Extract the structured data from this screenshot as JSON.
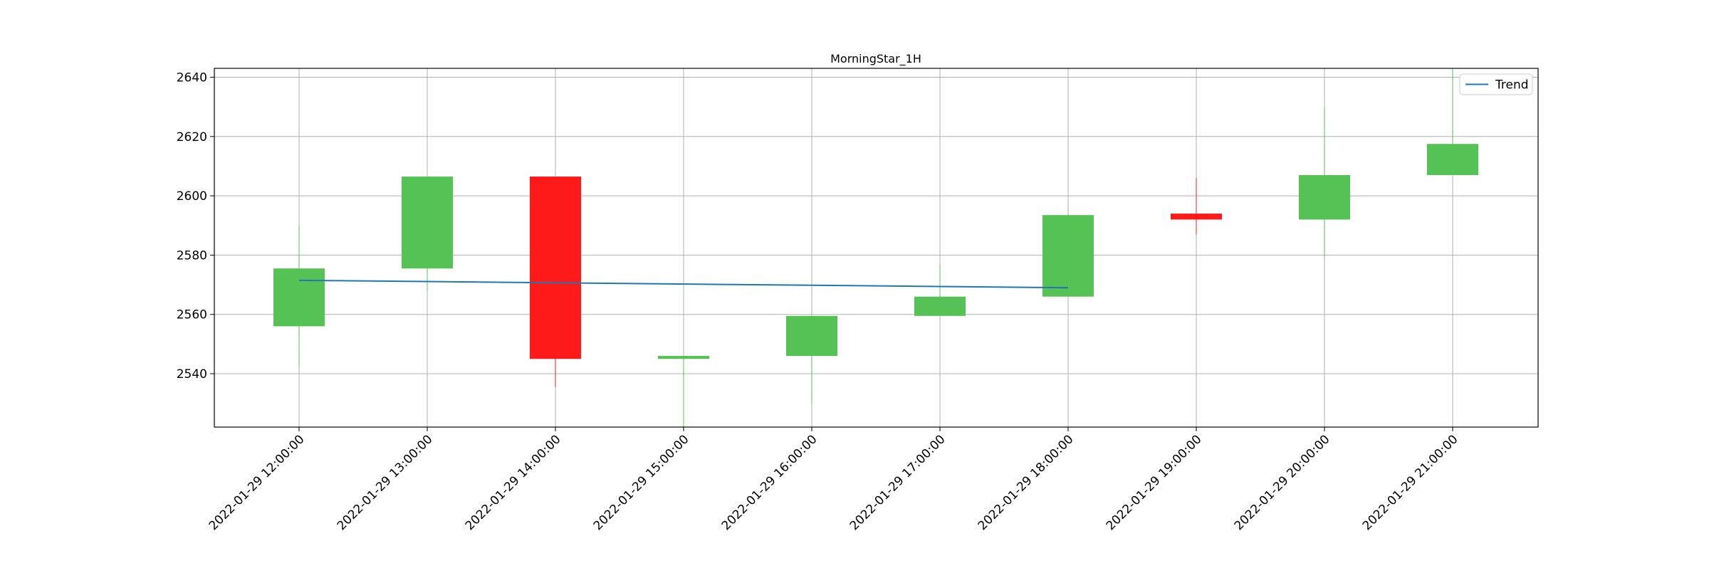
{
  "chart_data": {
    "type": "candlestick",
    "title": "MorningStar_1H",
    "xlabel": "",
    "ylabel": "",
    "ylim": [
      2522,
      2643
    ],
    "yticks": [
      2540,
      2560,
      2580,
      2600,
      2620,
      2640
    ],
    "grid": true,
    "legend": {
      "position": "top-right",
      "entries": [
        "Trend"
      ]
    },
    "categories": [
      "2022-01-29 12:00:00",
      "2022-01-29 13:00:00",
      "2022-01-29 14:00:00",
      "2022-01-29 15:00:00",
      "2022-01-29 16:00:00",
      "2022-01-29 17:00:00",
      "2022-01-29 18:00:00",
      "2022-01-29 19:00:00",
      "2022-01-29 20:00:00",
      "2022-01-29 21:00:00"
    ],
    "candles": [
      {
        "open": 2556,
        "high": 2590,
        "low": 2542,
        "close": 2575.5
      },
      {
        "open": 2575.5,
        "high": 2606.5,
        "low": 2568,
        "close": 2606.5
      },
      {
        "open": 2606.5,
        "high": 2606.5,
        "low": 2535.5,
        "close": 2545
      },
      {
        "open": 2545,
        "high": 2546,
        "low": 2522,
        "close": 2546
      },
      {
        "open": 2546,
        "high": 2559.5,
        "low": 2530,
        "close": 2559.5
      },
      {
        "open": 2559.5,
        "high": 2577,
        "low": 2559.5,
        "close": 2566
      },
      {
        "open": 2566,
        "high": 2594,
        "low": 2566,
        "close": 2593.5
      },
      {
        "open": 2594,
        "high": 2606,
        "low": 2587,
        "close": 2592
      },
      {
        "open": 2592,
        "high": 2630,
        "low": 2579,
        "close": 2607
      },
      {
        "open": 2607,
        "high": 2643,
        "low": 2607,
        "close": 2617.5
      }
    ],
    "series": [
      {
        "name": "Trend",
        "type": "line",
        "x": [
          0,
          6
        ],
        "values": [
          2571.5,
          2569
        ]
      }
    ],
    "colors": {
      "up": "#55c255",
      "down": "#ff1a1a",
      "trend": "#1f77b4",
      "grid": "#b0b0b0"
    }
  }
}
